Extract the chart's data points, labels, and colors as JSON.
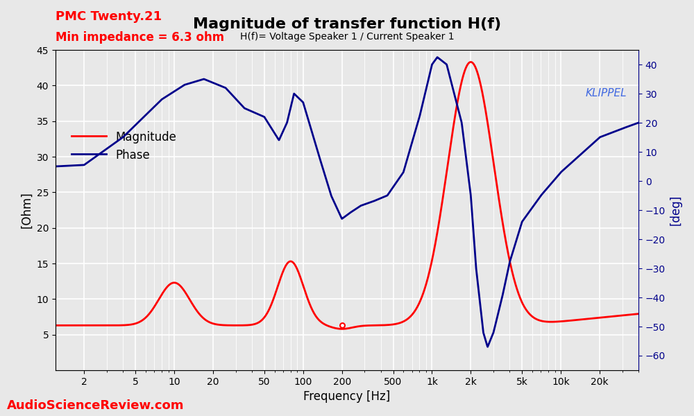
{
  "title": "Magnitude of transfer function H(f)",
  "subtitle": "H(f)= Voltage Speaker 1 / Current Speaker 1",
  "top_left_line1": "PMC Twenty.21",
  "top_left_line2": "Min impedance = 6.3 ohm",
  "top_left_color1": "red",
  "top_left_color2": "red",
  "watermark": "KLIPPEL",
  "watermark_color": "#4169E1",
  "bottom_left": "AudioScienceReview.com",
  "bottom_left_color": "red",
  "xlabel": "Frequency [Hz]",
  "ylabel_left": "[Ohm]",
  "ylabel_right": "[deg]",
  "ylim_left": [
    0,
    45
  ],
  "ylim_right": [
    -65,
    45
  ],
  "yticks_left": [
    5,
    10,
    15,
    20,
    25,
    30,
    35,
    40,
    45
  ],
  "yticks_right": [
    -60,
    -50,
    -40,
    -30,
    -20,
    -10,
    0,
    10,
    20,
    30,
    40
  ],
  "xlim": [
    1.2,
    40000
  ],
  "xticks": [
    2,
    5,
    10,
    20,
    50,
    100,
    200,
    500,
    1000,
    2000,
    5000,
    10000,
    20000
  ],
  "xtick_labels": [
    "2",
    "5",
    "10",
    "20",
    "50",
    "100",
    "200",
    "500",
    "1k",
    "2k",
    "5k",
    "10k",
    "20k"
  ],
  "magnitude_color": "red",
  "phase_color": "#00008B",
  "legend_magnitude": "Magnitude",
  "legend_phase": "Phase",
  "background_color": "#e8e8e8",
  "grid_color": "white"
}
